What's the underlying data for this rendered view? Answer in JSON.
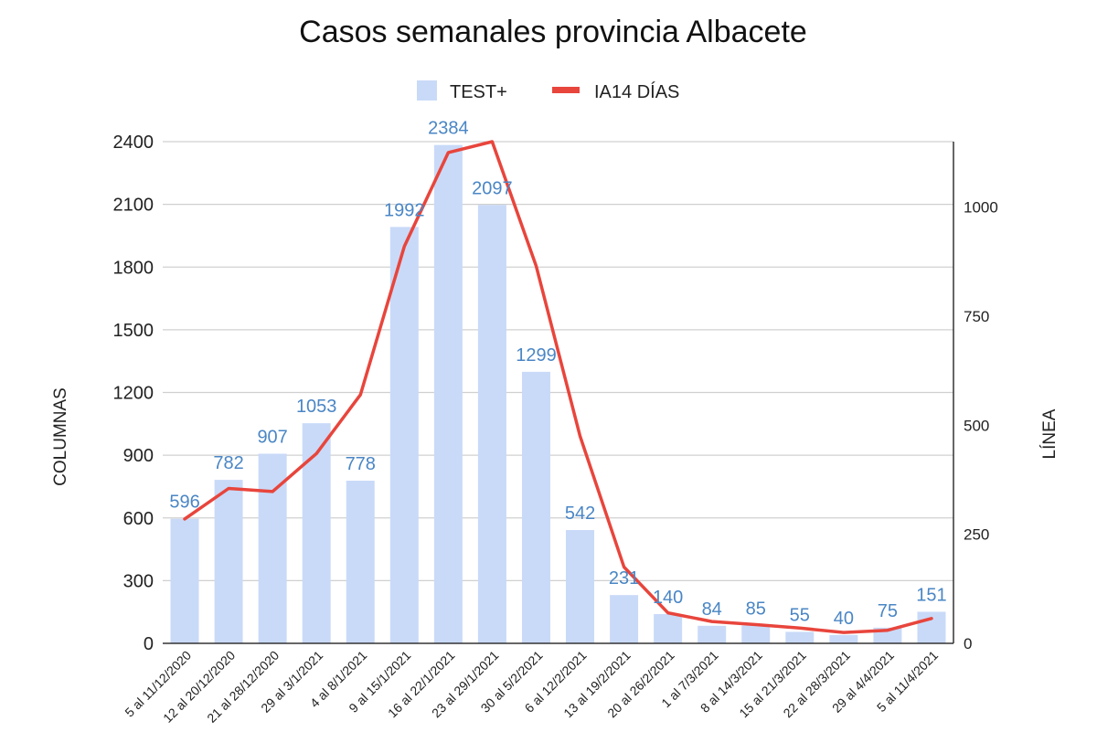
{
  "chart_data": {
    "type": "bar",
    "title": "Casos semanales provincia Albacete",
    "ylabel": "COLUMNAS",
    "y2label": "LÍNEA",
    "ylim": [
      0,
      2400
    ],
    "yticks": [
      0,
      300,
      600,
      900,
      1200,
      1500,
      1800,
      2100,
      2400
    ],
    "y2lim": [
      0,
      1150
    ],
    "y2ticks": [
      0,
      250,
      500,
      750,
      1000
    ],
    "grid": true,
    "legend_position": "top",
    "categories": [
      "5 al 11/12/2020",
      "12 al 20/12/2020",
      "21 al 28/12/2020",
      "29 al 3/1/2021",
      "4 al 8/1/2021",
      "9 al 15/1/2021",
      "16 al 22/1/2021",
      "23 al 29/1/2021",
      "30 al 5/2/2021",
      "6 al 12/2/2021",
      "13 al 19/2/2021",
      "20 al 26/2/2021",
      "1 al 7/3/2021",
      "8 al 14/3/2021",
      "15 al 21/3/2021",
      "22 al 28/3/2021",
      "29 al 4/4/2021",
      "5 al 11/4/2021"
    ],
    "series": [
      {
        "name": "TEST+",
        "type": "bar",
        "axis": "left",
        "color": "#c9daf8",
        "label_color": "#4a86c5",
        "values": [
          596,
          782,
          907,
          1053,
          778,
          1992,
          2384,
          2097,
          1299,
          542,
          231,
          140,
          84,
          85,
          55,
          40,
          75,
          151
        ]
      },
      {
        "name": "IA14 DÍAS",
        "type": "line",
        "axis": "right",
        "color": "#e8453c",
        "values": [
          285,
          355,
          348,
          435,
          570,
          910,
          1125,
          1150,
          865,
          475,
          175,
          70,
          50,
          43,
          35,
          25,
          30,
          57
        ]
      }
    ]
  }
}
